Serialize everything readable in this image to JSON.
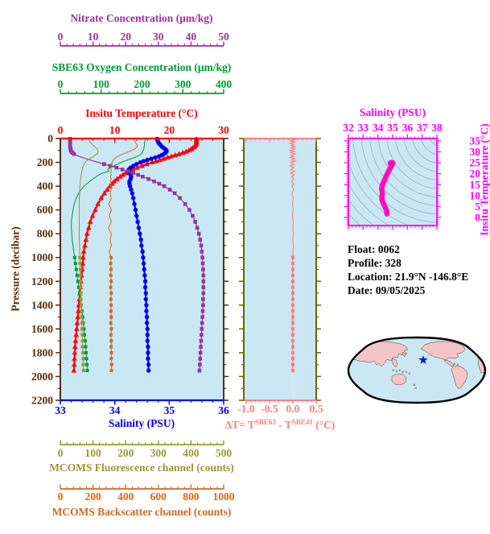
{
  "colors": {
    "nitrate": "#993399",
    "oxygen": "#009933",
    "temperature": "#ff0000",
    "salinity": "#0000ee",
    "pressure": "#552f0d",
    "fluorescence": "#999933",
    "backscatter": "#d2691e",
    "delta": "#ff7f7f",
    "delta_frame": "#666600",
    "delta_grid": "#dfe8ee",
    "ts_frame": "#ff00ff",
    "ts_curve": "#ff1493",
    "isopycnal": "#93a3ab",
    "plot_bg": "#cae8f4",
    "map_land": "#f5c5c5",
    "map_ocean": "#cae8f4",
    "map_border": "#000000",
    "star": "#1414dd"
  },
  "titles": {
    "nitrate": "Nitrate Concentration (μm/kg)",
    "oxygen": "SBE63 Oxygen Concentration (μm/kg)",
    "temperature": "Insitu Temperature (°C)",
    "salinity": "Salinity (PSU)",
    "fluorescence": "MCOMS Fluorescence channel (counts)",
    "backscatter": "MCOMS Backscatter channel (counts)",
    "pressure": "Pressure (decibar)",
    "ts_salinity": "Salinity (PSU)",
    "ts_temperature": "Insitu Temperature (°C)"
  },
  "delta_label": {
    "prefix": "ΔT= T",
    "sup1": "SBE63",
    "mid": " - T",
    "sup2": "SBE41",
    "suffix": " (°C)"
  },
  "info": {
    "lines": [
      "Float:  0062",
      "Profile:  328",
      "Location:  21.9°N  -146.8°E",
      "Date:  09/05/2025"
    ]
  },
  "map": {
    "star_marker": "star",
    "star_color": "#1414dd"
  },
  "chart_data": [
    {
      "id": "main-profile",
      "type": "line",
      "orientation": "vertical-profile",
      "y_axis": {
        "label": "Pressure (decibar)",
        "range": [
          0,
          2200
        ],
        "ticks": [
          0,
          200,
          400,
          600,
          800,
          1000,
          1200,
          1400,
          1600,
          1800,
          2000,
          2200
        ],
        "tick_labels": [
          "0",
          "200",
          "400",
          "600",
          "800",
          "1000",
          "1200",
          "1400",
          "1600",
          "1800",
          "2000",
          "2200"
        ],
        "minor_step": 100
      },
      "x_axes": [
        {
          "id": "nitrate",
          "title": "Nitrate Concentration (μm/kg)",
          "range": [
            0,
            50
          ],
          "ticks": [
            0,
            10,
            20,
            30,
            40,
            50
          ],
          "tick_labels": [
            "0",
            "10",
            "20",
            "30",
            "40",
            "50"
          ],
          "minor_step": 2
        },
        {
          "id": "oxygen",
          "title": "SBE63 Oxygen Concentration (μm/kg)",
          "range": [
            0,
            400
          ],
          "ticks": [
            0,
            100,
            200,
            300,
            400
          ],
          "tick_labels": [
            "0",
            "100",
            "200",
            "300",
            "400"
          ],
          "minor_step": 20
        },
        {
          "id": "temperature",
          "title": "Insitu Temperature (°C)",
          "range": [
            0,
            30
          ],
          "ticks": [
            0,
            10,
            20,
            30
          ],
          "tick_labels": [
            "0",
            "10",
            "20",
            "30"
          ],
          "minor_step": 2
        },
        {
          "id": "salinity",
          "title": "Salinity (PSU)",
          "range": [
            33,
            36
          ],
          "ticks": [
            33,
            34,
            35,
            36
          ],
          "tick_labels": [
            "33",
            "34",
            "35",
            "36"
          ],
          "minor_step": 0.2
        },
        {
          "id": "fluorescence",
          "title": "MCOMS Fluorescence channel (counts)",
          "range": [
            0,
            500
          ],
          "ticks": [
            0,
            100,
            200,
            300,
            400,
            500
          ],
          "tick_labels": [
            "0",
            "100",
            "200",
            "300",
            "400",
            "500"
          ],
          "minor_step": 20
        },
        {
          "id": "backscatter",
          "title": "MCOMS Backscatter channel (counts)",
          "range": [
            0,
            1000
          ],
          "ticks": [
            0,
            200,
            400,
            600,
            800,
            1000
          ],
          "tick_labels": [
            "0",
            "200",
            "400",
            "600",
            "800",
            "1000"
          ],
          "minor_step": 40
        }
      ],
      "pressure_db": [
        0,
        10,
        20,
        30,
        40,
        50,
        60,
        70,
        80,
        90,
        100,
        110,
        120,
        130,
        140,
        150,
        160,
        170,
        180,
        190,
        200,
        215,
        230,
        245,
        260,
        275,
        290,
        305,
        320,
        340,
        360,
        380,
        400,
        430,
        460,
        500,
        550,
        600,
        650,
        700,
        750,
        800,
        850,
        900,
        950,
        1000,
        1050,
        1100,
        1150,
        1200,
        1250,
        1300,
        1350,
        1400,
        1450,
        1500,
        1550,
        1600,
        1650,
        1700,
        1750,
        1800,
        1850,
        1900,
        1950
      ],
      "series": [
        {
          "id": "temperature",
          "name": "Insitu Temperature",
          "axis": "temperature",
          "color_key": "temperature",
          "line_width": 2.2,
          "marker": "triangle",
          "marker_rule": "all",
          "values": [
            25.0,
            25.0,
            25.0,
            25.0,
            25.0,
            24.9,
            24.8,
            24.6,
            24.3,
            24.0,
            23.6,
            23.1,
            22.5,
            21.8,
            21.1,
            20.4,
            19.7,
            19.0,
            18.3,
            17.6,
            16.9,
            15.9,
            15.0,
            14.1,
            13.3,
            12.6,
            12.0,
            11.5,
            11.0,
            10.4,
            9.9,
            9.5,
            9.1,
            8.6,
            8.1,
            7.5,
            6.9,
            6.4,
            5.9,
            5.5,
            5.2,
            4.9,
            4.7,
            4.5,
            4.3,
            4.2,
            4.1,
            4.0,
            3.9,
            3.8,
            3.7,
            3.6,
            3.5,
            3.4,
            3.3,
            3.2,
            3.1,
            3.0,
            2.9,
            2.8,
            2.7,
            2.65,
            2.6,
            2.55,
            2.5
          ]
        },
        {
          "id": "salinity",
          "name": "Salinity",
          "axis": "salinity",
          "color_key": "salinity",
          "line_width": 2.2,
          "marker": "circle",
          "marker_rule": "all",
          "values": [
            34.78,
            34.78,
            34.79,
            34.8,
            34.81,
            34.83,
            34.85,
            34.87,
            34.9,
            34.93,
            34.95,
            34.95,
            34.93,
            34.9,
            34.86,
            34.81,
            34.74,
            34.67,
            34.6,
            34.53,
            34.47,
            34.4,
            34.34,
            34.29,
            34.26,
            34.25,
            34.27,
            34.29,
            34.3,
            34.29,
            34.27,
            34.27,
            34.28,
            34.3,
            34.32,
            34.34,
            34.36,
            34.38,
            34.4,
            34.42,
            34.44,
            34.46,
            34.48,
            34.49,
            34.51,
            34.52,
            34.53,
            34.54,
            34.55,
            34.56,
            34.56,
            34.57,
            34.57,
            34.58,
            34.58,
            34.59,
            34.59,
            34.6,
            34.6,
            34.6,
            34.61,
            34.61,
            34.61,
            34.62,
            34.62
          ]
        },
        {
          "id": "nitrate",
          "name": "Nitrate Concentration",
          "axis": "nitrate",
          "color_key": "nitrate",
          "line_width": 1.2,
          "marker": "square",
          "marker_rule": "blob-sparse",
          "values": [
            3.0,
            3.0,
            3.0,
            3.0,
            3.0,
            3.0,
            3.0,
            3.0,
            3.1,
            3.1,
            3.2,
            3.4,
            3.7,
            4.2,
            4.9,
            5.8,
            6.8,
            7.9,
            9.1,
            10.3,
            11.5,
            13.4,
            15.3,
            17.2,
            19.0,
            20.7,
            22.3,
            23.8,
            25.2,
            27.0,
            28.7,
            30.3,
            31.8,
            33.5,
            35.0,
            36.6,
            38.2,
            39.5,
            40.5,
            41.3,
            41.9,
            42.4,
            42.8,
            43.1,
            43.3,
            43.5,
            43.6,
            43.7,
            43.8,
            43.8,
            43.8,
            43.8,
            43.7,
            43.7,
            43.6,
            43.5,
            43.4,
            43.3,
            43.2,
            43.1,
            43.0,
            42.9,
            42.8,
            42.7,
            42.6
          ]
        },
        {
          "id": "oxygen",
          "name": "SBE63 Oxygen Concentration",
          "axis": "oxygen",
          "color_key": "oxygen",
          "line_width": 1.0,
          "marker": "square",
          "marker_rule": "deep",
          "values": [
            207,
            207,
            207,
            207,
            206,
            206,
            206,
            205,
            205,
            204,
            203,
            202,
            200,
            198,
            194,
            188,
            181,
            173,
            165,
            157,
            150,
            140,
            131,
            122,
            116,
            119,
            103,
            95,
            88,
            80,
            72,
            65,
            58,
            51,
            45,
            39,
            34,
            31,
            29,
            27,
            27,
            28,
            29,
            31,
            33,
            35,
            37,
            39,
            41,
            43,
            45,
            47,
            49,
            51,
            53,
            55,
            56,
            58,
            59,
            61,
            62,
            63,
            64,
            65,
            66
          ]
        },
        {
          "id": "fluorescence",
          "name": "MCOMS Fluorescence channel",
          "axis": "fluorescence",
          "color_key": "fluorescence",
          "line_width": 1.0,
          "marker": "square",
          "marker_rule": "deep",
          "values": [
            86,
            88,
            90,
            92,
            95,
            98,
            102,
            106,
            110,
            113,
            115,
            116,
            115,
            112,
            107,
            101,
            95,
            89,
            84,
            79,
            76,
            73,
            70,
            68,
            67,
            66,
            65,
            64,
            63,
            62,
            61,
            61,
            60,
            59,
            59,
            58,
            58,
            58,
            58,
            58,
            58,
            58,
            58,
            59,
            59,
            60,
            60,
            61,
            61,
            62,
            62,
            63,
            63,
            64,
            64,
            65,
            66,
            66,
            67,
            68,
            68,
            69,
            70,
            70,
            71
          ]
        },
        {
          "id": "backscatter",
          "name": "MCOMS Backscatter channel",
          "axis": "backscatter",
          "color_key": "backscatter",
          "line_width": 1.0,
          "marker": "square",
          "marker_rule": "deep",
          "values": [
            450,
            452,
            455,
            459,
            463,
            468,
            471,
            469,
            462,
            451,
            437,
            420,
            402,
            384,
            367,
            352,
            340,
            331,
            325,
            320,
            317,
            314,
            312,
            311,
            310,
            311,
            309,
            312,
            308,
            311,
            307,
            312,
            306,
            311,
            305,
            312,
            296,
            313,
            300,
            312,
            295,
            311,
            306,
            312,
            299,
            311,
            308,
            310,
            309,
            311,
            308,
            312,
            309,
            311,
            310,
            312,
            309,
            313,
            310,
            312,
            311,
            313,
            312,
            314,
            313
          ]
        }
      ]
    },
    {
      "id": "delta-t",
      "type": "line",
      "x_axis": {
        "label": "ΔT= T^SBE63 - T^SBE41 (°C)",
        "range": [
          -1.05,
          0.5
        ],
        "ticks": [
          -1.0,
          -0.5,
          0.0,
          0.5
        ],
        "tick_labels": [
          "-1.0",
          "-0.5",
          "0.0",
          "0.5"
        ],
        "minor_step": 0.1,
        "zero_gridline": true
      },
      "pressure_db_ref": "main-profile",
      "series": [
        {
          "id": "delta",
          "name": "ΔT SBE63-SBE41",
          "color_key": "delta",
          "line_width": 1.2,
          "marker": "square",
          "marker_rule": "deep",
          "values": [
            -0.02,
            0.03,
            -0.05,
            0.04,
            -0.06,
            0.02,
            -0.04,
            0.05,
            -0.03,
            0.04,
            -0.06,
            0.03,
            -0.05,
            0.05,
            -0.04,
            0.02,
            -0.06,
            0.04,
            -0.03,
            0.05,
            -0.05,
            0.03,
            -0.06,
            0.02,
            -0.04,
            0.04,
            -0.05,
            0.03,
            -0.03,
            0.02,
            -0.03,
            0.02,
            -0.02,
            0.02,
            -0.02,
            0.01,
            -0.01,
            0.01,
            -0.01,
            0.01,
            0,
            0.01,
            0,
            0.01,
            0,
            0,
            0,
            0,
            0,
            0,
            0,
            0,
            0,
            0,
            0,
            0,
            0,
            0,
            0,
            0,
            0,
            0,
            0,
            0,
            0
          ]
        }
      ]
    },
    {
      "id": "ts-diagram",
      "type": "line",
      "x_axis": {
        "label": "Salinity (PSU)",
        "range": [
          32,
          38
        ],
        "ticks": [
          32,
          33,
          34,
          35,
          36,
          37,
          38
        ],
        "tick_labels": [
          "32",
          "33",
          "34",
          "35",
          "36",
          "37",
          "38"
        ],
        "minor_step": 0.25
      },
      "y_axis": {
        "label": "Insitu Temperature (°C)",
        "range": [
          -3.7,
          36.1
        ],
        "ticks": [
          0,
          5,
          10,
          15,
          20,
          25,
          30,
          35
        ],
        "tick_labels": [
          "0",
          "5",
          "10",
          "15",
          "20",
          "25",
          "30",
          "35"
        ],
        "minor_step": 1
      },
      "isopycnal_grid": true,
      "points": {
        "salinity": [
          34.62,
          34.61,
          34.6,
          34.58,
          34.55,
          34.5,
          34.44,
          34.37,
          34.31,
          34.28,
          34.27,
          34.28,
          34.3,
          34.29,
          34.27,
          34.26,
          34.28,
          34.33,
          34.4,
          34.48,
          34.55,
          34.62,
          34.7,
          34.78,
          34.85,
          34.91,
          34.97,
          35.01,
          35.0,
          34.93,
          34.86,
          34.83
        ],
        "temperature": [
          1.6,
          2.0,
          2.5,
          3.1,
          3.8,
          4.6,
          5.5,
          6.4,
          7.3,
          8.2,
          9.1,
          10.0,
          10.9,
          11.8,
          12.6,
          13.4,
          14.3,
          15.3,
          16.4,
          17.5,
          18.6,
          19.7,
          20.8,
          21.8,
          22.7,
          23.5,
          24.2,
          24.7,
          25.0,
          25.1,
          25.0,
          24.8
        ]
      }
    }
  ]
}
